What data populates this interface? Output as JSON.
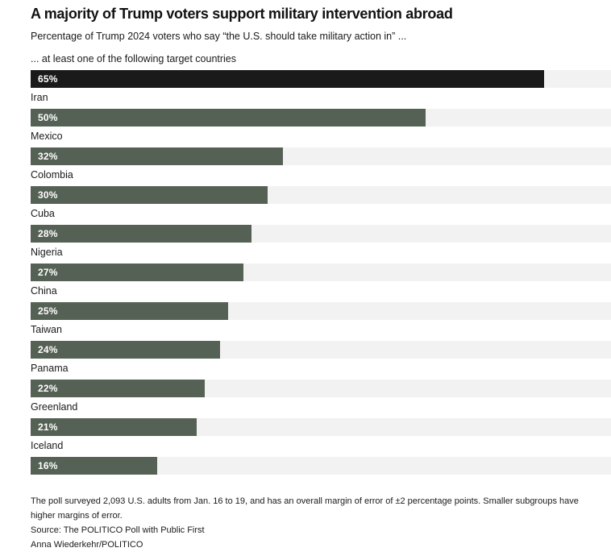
{
  "colors": {
    "bar_default": "#566156",
    "bar_highlight": "#1a1a1a",
    "track": "#f2f2f2",
    "text": "#1a1a1a"
  },
  "chart_data": {
    "type": "bar",
    "orientation": "horizontal",
    "title": "A majority of Trump voters support military intervention abroad",
    "subtitle": "Percentage of Trump 2024 voters who say “the U.S. should take military action in” ...",
    "categories": [
      "... at least one of the following target countries",
      "Iran",
      "Mexico",
      "Colombia",
      "Cuba",
      "Nigeria",
      "China",
      "Taiwan",
      "Panama",
      "Greenland",
      "Iceland"
    ],
    "values": [
      65,
      50,
      32,
      30,
      28,
      27,
      25,
      24,
      22,
      21,
      16
    ],
    "value_labels": [
      "65%",
      "50%",
      "32%",
      "30%",
      "28%",
      "27%",
      "25%",
      "24%",
      "22%",
      "21%",
      "16%"
    ],
    "xlim": [
      0,
      73.5
    ],
    "highlight_index": 0,
    "legend": "none",
    "grid": "off"
  },
  "footer": {
    "note": "The poll surveyed 2,093 U.S. adults from Jan. 16 to 19, and has an overall margin of error of ±2 percentage points. Smaller subgroups have higher margins of error.",
    "source": "Source: The POLITICO Poll with Public First",
    "credit": "Anna Wiederkehr/POLITICO"
  }
}
